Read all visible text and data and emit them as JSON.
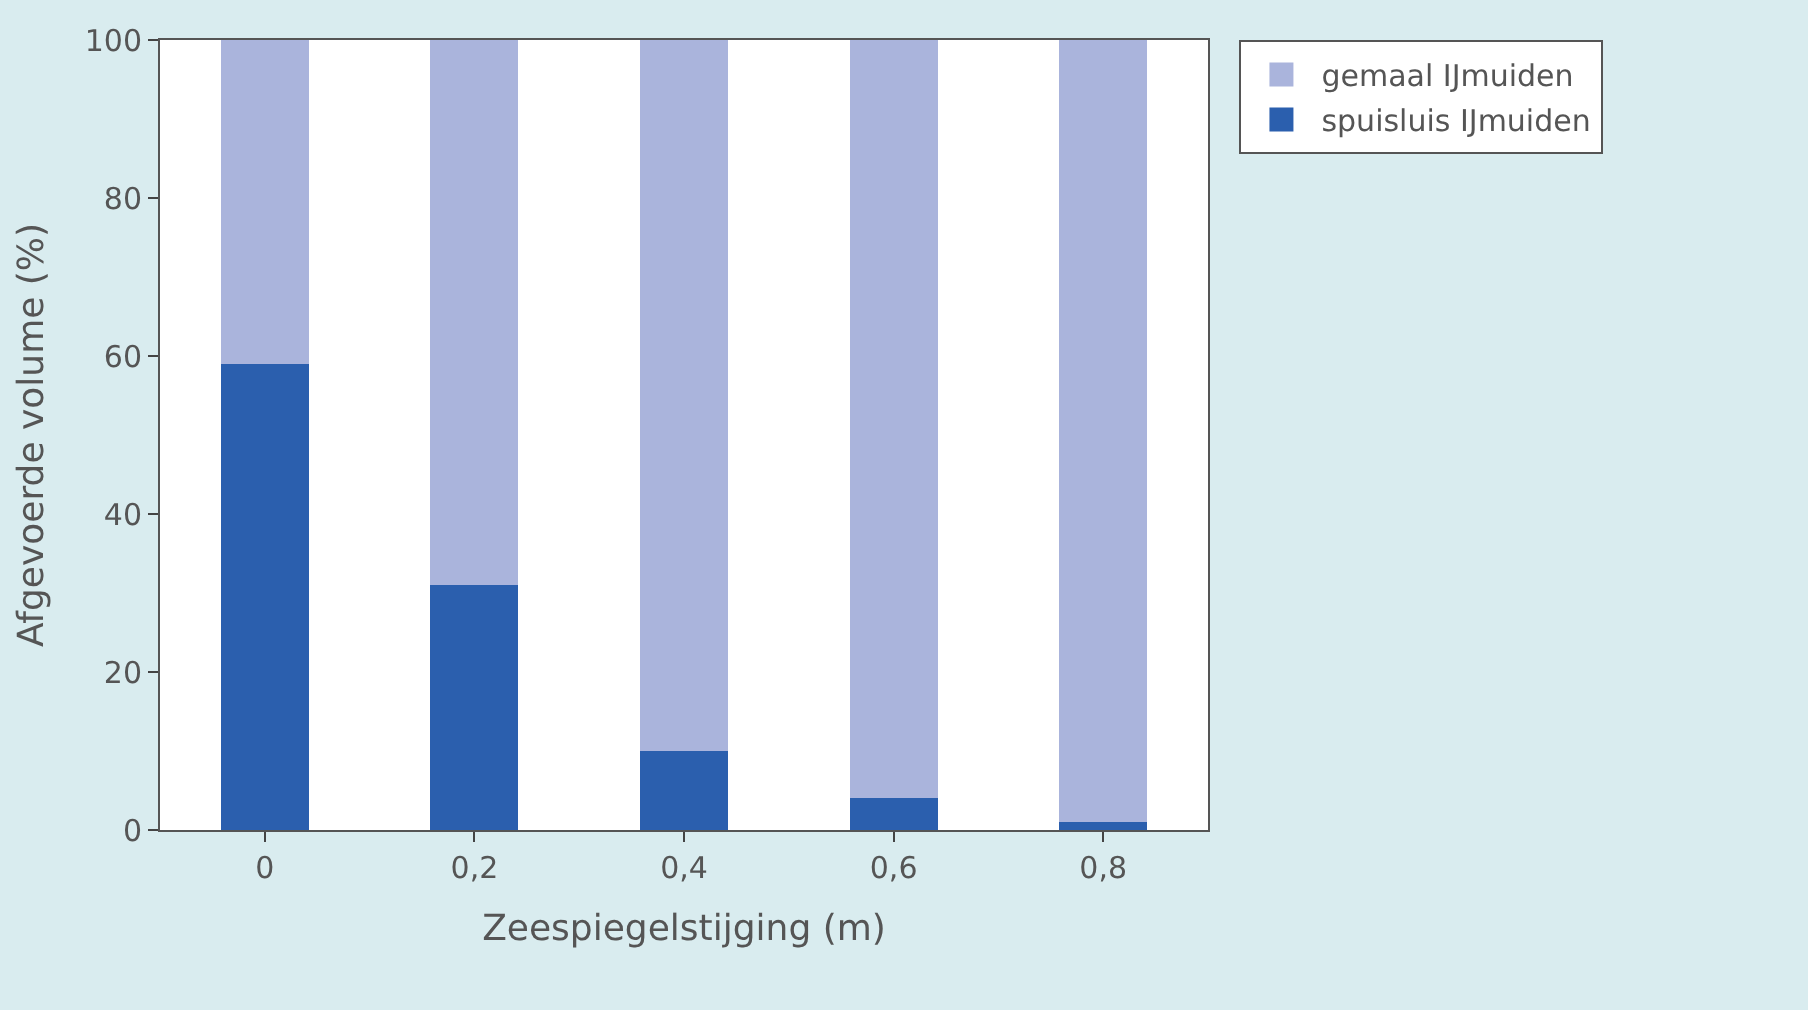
{
  "chart_data": {
    "type": "bar",
    "stacked": true,
    "xlabel": "Zeespiegelstijging (m)",
    "ylabel": "Afgevoerde volume (%)",
    "categories": [
      "0",
      "0,2",
      "0,4",
      "0,6",
      "0,8"
    ],
    "series": [
      {
        "name": "spuisluis IJmuiden",
        "color": "#2b5fae",
        "values": [
          59,
          31,
          10,
          4,
          1
        ]
      },
      {
        "name": "gemaal IJmuiden",
        "color": "#aab4dc",
        "values": [
          41,
          69,
          90,
          96,
          99
        ]
      }
    ],
    "ylim": [
      0,
      100
    ],
    "yticks": [
      0,
      20,
      40,
      60,
      80,
      100
    ],
    "legend": "top right"
  }
}
